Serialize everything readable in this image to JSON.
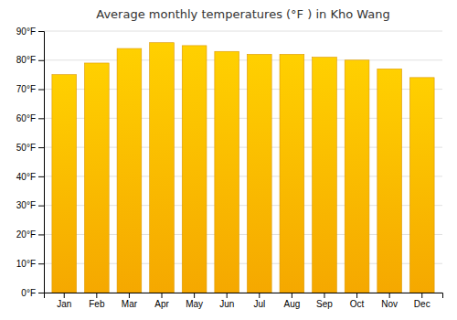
{
  "chart_data": {
    "type": "bar",
    "title": "Average monthly temperatures (°F ) in Kho Wang",
    "categories": [
      "Jan",
      "Feb",
      "Mar",
      "Apr",
      "May",
      "Jun",
      "Jul",
      "Aug",
      "Sep",
      "Oct",
      "Nov",
      "Dec"
    ],
    "values": [
      75,
      79,
      84,
      86,
      85,
      83,
      82,
      82,
      81,
      80,
      77,
      74
    ],
    "color": "#F5A800",
    "ylim": [
      0,
      90
    ],
    "yticks": [
      {
        "value": 0,
        "label": "0°F"
      },
      {
        "value": 10,
        "label": "10°F"
      },
      {
        "value": 20,
        "label": "20°F"
      },
      {
        "value": 30,
        "label": "30°F"
      },
      {
        "value": 40,
        "label": "40°F"
      },
      {
        "value": 50,
        "label": "50°F"
      },
      {
        "value": 60,
        "label": "60°F"
      },
      {
        "value": 70,
        "label": "70°F"
      },
      {
        "value": 80,
        "label": "80°F"
      },
      {
        "value": 90,
        "label": "90°F"
      }
    ],
    "grid": true
  }
}
